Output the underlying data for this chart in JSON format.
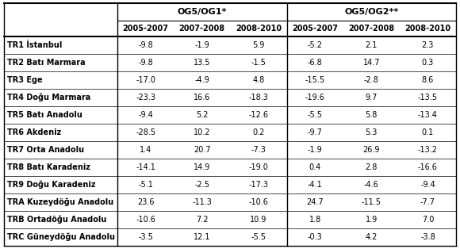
{
  "rows": [
    {
      "label": "TR1 İstanbul",
      "og1": [
        -9.8,
        -1.9,
        5.9
      ],
      "og2": [
        -5.2,
        2.1,
        2.3
      ]
    },
    {
      "label": "TR2 Batı Marmara",
      "og1": [
        -9.8,
        13.5,
        -1.5
      ],
      "og2": [
        -6.8,
        14.7,
        0.3
      ]
    },
    {
      "label": "TR3 Ege",
      "og1": [
        -17.0,
        -4.9,
        4.8
      ],
      "og2": [
        -15.5,
        -2.8,
        8.6
      ]
    },
    {
      "label": "TR4 Doğu Marmara",
      "og1": [
        -23.3,
        16.6,
        -18.3
      ],
      "og2": [
        -19.6,
        9.7,
        -13.5
      ]
    },
    {
      "label": "TR5 Batı Anadolu",
      "og1": [
        -9.4,
        5.2,
        -12.6
      ],
      "og2": [
        -5.5,
        5.8,
        -13.4
      ]
    },
    {
      "label": "TR6 Akdeniz",
      "og1": [
        -28.5,
        10.2,
        0.2
      ],
      "og2": [
        -9.7,
        5.3,
        0.1
      ]
    },
    {
      "label": "TR7 Orta Anadolu",
      "og1": [
        1.4,
        20.7,
        -7.3
      ],
      "og2": [
        -1.9,
        26.9,
        -13.2
      ]
    },
    {
      "label": "TR8 Batı Karadeniz",
      "og1": [
        -14.1,
        14.9,
        -19.0
      ],
      "og2": [
        0.4,
        2.8,
        -16.6
      ]
    },
    {
      "label": "TR9 Doğu Karadeniz",
      "og1": [
        -5.1,
        -2.5,
        -17.3
      ],
      "og2": [
        -4.1,
        -4.6,
        -9.4
      ]
    },
    {
      "label": "TRA Kuzeydöğu Anadolu",
      "og1": [
        23.6,
        -11.3,
        -10.6
      ],
      "og2": [
        24.7,
        -11.5,
        -7.7
      ]
    },
    {
      "label": "TRB Ortadöğu Anadolu",
      "og1": [
        -10.6,
        7.2,
        10.9
      ],
      "og2": [
        1.8,
        1.9,
        7.0
      ]
    },
    {
      "label": "TRC Güneydöğu Anadolu",
      "og1": [
        -3.5,
        12.1,
        -5.5
      ],
      "og2": [
        -0.3,
        4.2,
        -3.8
      ]
    }
  ],
  "group1_label": "OG5/OG1*",
  "group2_label": "OG5/OG2**",
  "sub_cols": [
    "2005-2007",
    "2007-2008",
    "2008-2010"
  ],
  "fig_width": 5.8,
  "fig_height": 3.14,
  "dpi": 100
}
